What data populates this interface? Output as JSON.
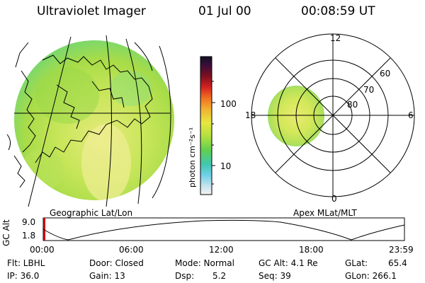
{
  "header": {
    "title": "Ultraviolet Imager",
    "date": "01 Jul 00",
    "time": "00:08:59 UT"
  },
  "geo_panel": {
    "label": "Geographic Lat/Lon"
  },
  "polar_panel": {
    "label": "Apex MLat/MLT",
    "mlt_labels": [
      "12",
      "6",
      "0",
      "18"
    ],
    "lat_labels": [
      "60",
      "70",
      "80"
    ]
  },
  "colorbar": {
    "unit_label": "photon cm⁻²s⁻¹",
    "ticks": [
      "100",
      "10"
    ]
  },
  "altitude_plot": {
    "ylabel": "GC Alt",
    "yticks": [
      "9.0",
      "1.8"
    ],
    "xticks": [
      "00:00",
      "06:00",
      "12:00",
      "18:00",
      "23:59"
    ]
  },
  "info": {
    "flt": "Flt: LBHL",
    "ip": "IP: 36.0",
    "door": "Door: Closed",
    "gain": "Gain: 13",
    "mode": "Mode: Normal",
    "dsp": "Dsp:",
    "dsp_value": "5.2",
    "gc_alt": "GC Alt: 4.1 Re",
    "seq": "Seq: 39",
    "glat": "GLat:",
    "glat_value": "65.4",
    "glon": "GLon: 266.1"
  },
  "colors": {
    "disc_main": "#b8e04a",
    "disc_bright": "#e4ea7a",
    "disc_edge": "#7ee27a",
    "accent_red": "#cc0000"
  }
}
